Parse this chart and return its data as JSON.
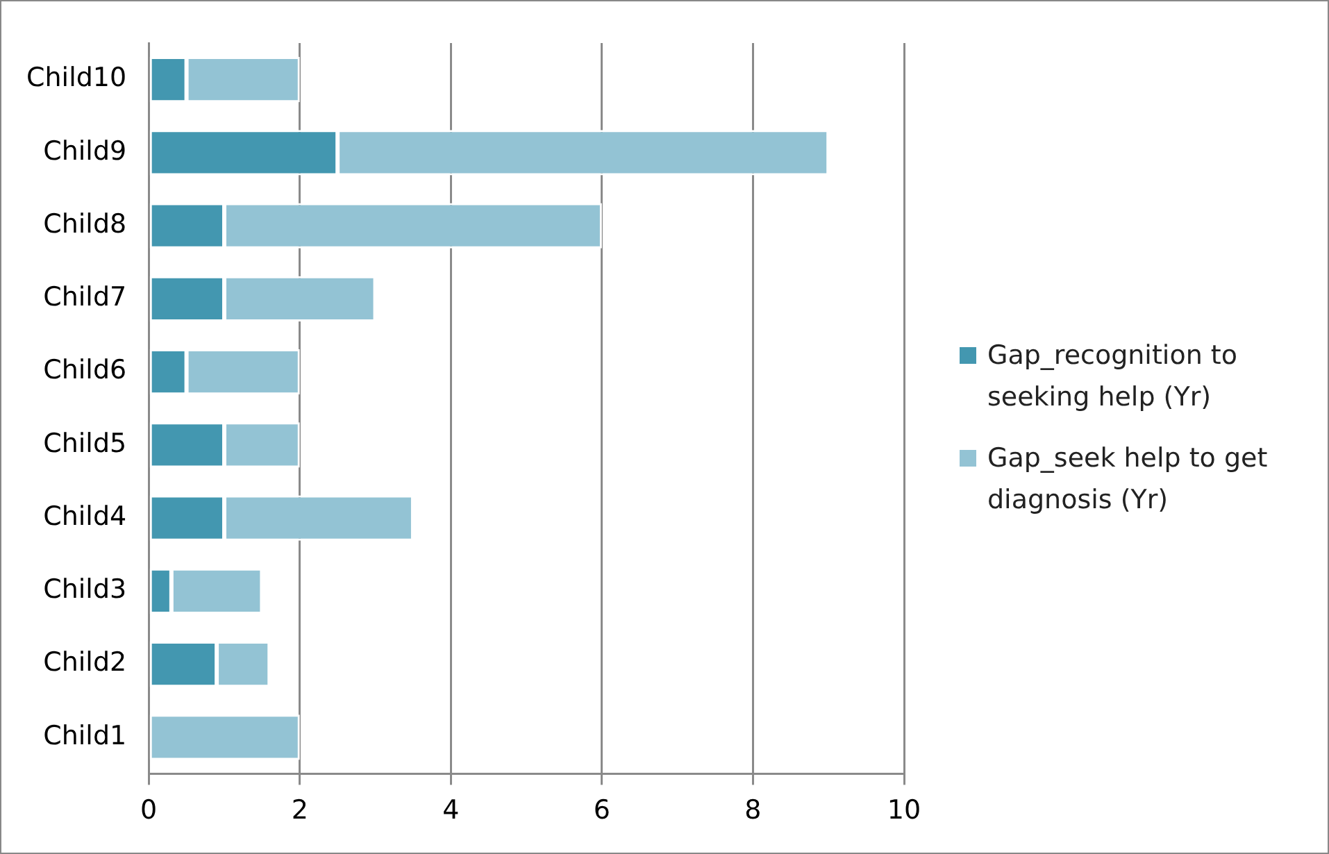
{
  "chart_data": {
    "type": "bar",
    "orientation": "horizontal",
    "stacked": true,
    "categories": [
      "Child10",
      "Child9",
      "Child8",
      "Child7",
      "Child6",
      "Child5",
      "Child4",
      "Child3",
      "Child2",
      "Child1"
    ],
    "series": [
      {
        "name": "Gap_recognition to seeking help (Yr)",
        "color": "#4397b0",
        "values": [
          0.5,
          2.5,
          1,
          1,
          0.5,
          1,
          1,
          0.3,
          0.9,
          0
        ]
      },
      {
        "name": "Gap_seek help to get diagnosis (Yr)",
        "color": "#93c3d4",
        "values": [
          1.5,
          6.5,
          5,
          2,
          1.5,
          1,
          2.5,
          1.2,
          0.7,
          2
        ]
      }
    ],
    "xlim": [
      0,
      10
    ],
    "xticks": [
      0,
      2,
      4,
      6,
      8,
      10
    ],
    "grid": "x",
    "legend": "right"
  }
}
